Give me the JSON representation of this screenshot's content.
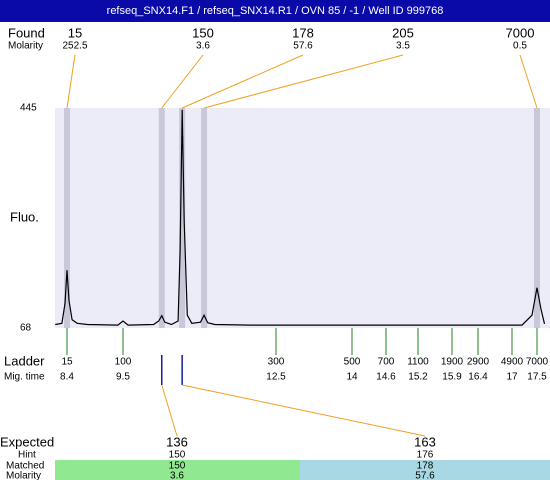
{
  "chart_data": {
    "type": "electropherogram",
    "title": "refseq_SNX14.F1 / refseq_SNX14.R1 / OVN 85 / -1 / Well ID 999768",
    "found": {
      "label": "Found",
      "molarity_label": "Molarity",
      "sizes": [
        15,
        150,
        178,
        205,
        7000
      ],
      "molarities": [
        252.5,
        3.6,
        57.6,
        3.5,
        0.5
      ],
      "mig_times": [
        8.4,
        10.26,
        10.66,
        11.09,
        17.5
      ]
    },
    "ylabel": "Fluo.",
    "ylim": [
      68,
      445
    ],
    "yticks": [
      68,
      445
    ],
    "trace": {
      "time": [
        8.17,
        8.3,
        8.36,
        8.4,
        8.44,
        8.5,
        8.6,
        8.8,
        9.4,
        9.5,
        9.6,
        10.1,
        10.2,
        10.26,
        10.32,
        10.45,
        10.58,
        10.62,
        10.66,
        10.7,
        10.76,
        10.85,
        11.02,
        11.09,
        11.16,
        11.3,
        12,
        17.2,
        17.4,
        17.5,
        17.58,
        17.65
      ],
      "fluo": [
        74,
        76,
        110,
        167,
        115,
        82,
        76,
        74,
        73,
        80,
        73,
        74,
        80,
        89,
        78,
        74,
        80,
        200,
        442,
        250,
        90,
        76,
        78,
        90,
        77,
        74,
        73,
        73,
        90,
        137,
        100,
        75
      ]
    },
    "ladder": {
      "label": "Ladder",
      "time_label": "Mig. time",
      "sizes": [
        15,
        100,
        300,
        500,
        700,
        1100,
        1900,
        2900,
        4900,
        7000
      ],
      "mig_times": [
        8.4,
        9.5,
        12.5,
        14,
        14.6,
        15.2,
        15.9,
        16.4,
        17,
        17.5
      ]
    },
    "expected": {
      "label": "Expected",
      "hint_label": "Hint",
      "matched_label": "Matched",
      "molarity_label": "Molarity",
      "sizes": [
        136,
        163
      ],
      "hints": [
        150,
        176
      ],
      "matched": [
        150,
        178
      ],
      "molarities": [
        3.6,
        57.6
      ],
      "matched_peaks": [
        1,
        2
      ]
    }
  }
}
